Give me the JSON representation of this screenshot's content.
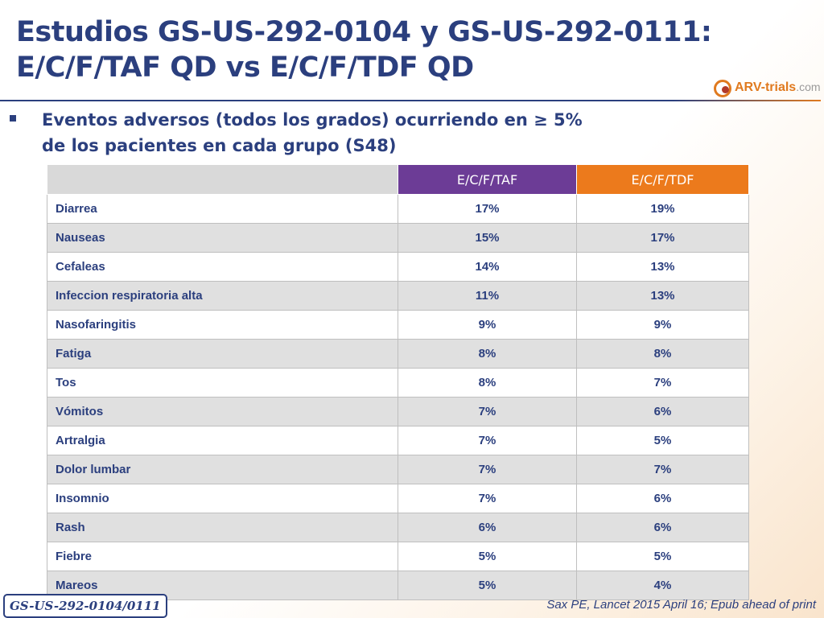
{
  "slide": {
    "title_line1": "Estudios GS-US-292-0104 y GS-US-292-0111:",
    "title_line2": "E/C/F/TAF QD vs E/C/F/TDF QD",
    "bullet_line1": "Eventos adversos (todos los  grados) ocurriendo en ≥ 5%",
    "bullet_line2": "de los pacientes en cada grupo (S48)"
  },
  "logo": {
    "brand": "ARV-trials",
    "suffix": ".com"
  },
  "table": {
    "headers": [
      "",
      "E/C/F/TAF",
      "E/C/F/TDF"
    ],
    "rows": [
      [
        "Diarrea",
        "17%",
        "19%"
      ],
      [
        "Nauseas",
        "15%",
        "17%"
      ],
      [
        "Cefaleas",
        "14%",
        "13%"
      ],
      [
        "Infeccion respiratoria alta",
        "11%",
        "13%"
      ],
      [
        "Nasofaringitis",
        "9%",
        "9%"
      ],
      [
        "Fatiga",
        "8%",
        "8%"
      ],
      [
        "Tos",
        "8%",
        "7%"
      ],
      [
        "Vómitos",
        "7%",
        "6%"
      ],
      [
        "Artralgia",
        "7%",
        "5%"
      ],
      [
        "Dolor lumbar",
        "7%",
        "7%"
      ],
      [
        "Insomnio",
        "7%",
        "6%"
      ],
      [
        "Rash",
        "6%",
        "6%"
      ],
      [
        "Fiebre",
        "5%",
        "5%"
      ],
      [
        "Mareos",
        "5%",
        "4%"
      ]
    ]
  },
  "footer": {
    "study": "GS-US-292-0104/0111",
    "citation": "Sax PE, Lancet 2015 April 16; Epub ahead of print"
  },
  "colors": {
    "title": "#2b3f7e",
    "taf_header": "#6c3c96",
    "tdf_header": "#ec7a1c",
    "row_alt": "#e0e0e0"
  }
}
